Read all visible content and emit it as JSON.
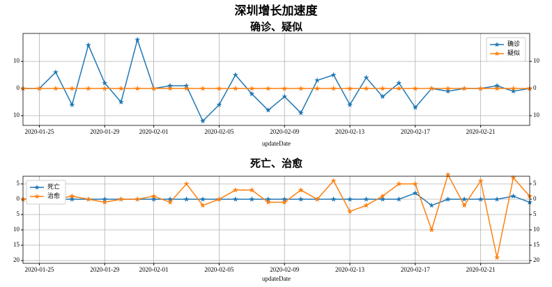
{
  "title": "深圳增长加速度",
  "chart_data": [
    {
      "type": "line",
      "title": "确诊、疑似",
      "xlabel": "updateDate",
      "x": [
        "2020-01-24",
        "2020-01-25",
        "2020-01-26",
        "2020-01-27",
        "2020-01-28",
        "2020-01-29",
        "2020-01-30",
        "2020-01-31",
        "2020-02-01",
        "2020-02-02",
        "2020-02-03",
        "2020-02-04",
        "2020-02-05",
        "2020-02-06",
        "2020-02-07",
        "2020-02-08",
        "2020-02-09",
        "2020-02-10",
        "2020-02-11",
        "2020-02-12",
        "2020-02-13",
        "2020-02-14",
        "2020-02-15",
        "2020-02-16",
        "2020-02-17",
        "2020-02-18",
        "2020-02-19",
        "2020-02-20",
        "2020-02-21",
        "2020-02-22",
        "2020-02-23",
        "2020-02-24"
      ],
      "xlim": [
        "2020-01-24",
        "2020-02-24"
      ],
      "xticks": [
        "2020-01-25",
        "2020-01-29",
        "2020-02-01",
        "2020-02-05",
        "2020-02-09",
        "2020-02-13",
        "2020-02-17",
        "2020-02-21"
      ],
      "ylim": [
        -13.6,
        20.3
      ],
      "yticks": [
        {
          "value": -10,
          "label": "10"
        },
        0,
        10
      ],
      "y2lim": [
        -13.6,
        20.3
      ],
      "y2ticks": [
        {
          "value": -10,
          "label": "10"
        },
        0,
        10
      ],
      "grid": true,
      "legend": "upper right",
      "series": [
        {
          "name": "确诊",
          "color": "#1f77b4",
          "values": [
            0,
            0,
            6,
            -6,
            16,
            2,
            -5,
            18,
            0,
            1,
            1,
            -12,
            -6,
            5,
            -2,
            -8,
            -3,
            -9,
            3,
            5,
            -6,
            4,
            -3,
            2,
            -7,
            0,
            -1,
            0,
            0,
            1,
            -1,
            0
          ]
        },
        {
          "name": "疑似",
          "color": "#ff7f0e",
          "axis": "y2",
          "values": [
            0,
            0,
            0,
            0,
            0,
            0,
            0,
            0,
            0,
            0,
            0,
            0,
            0,
            0,
            0,
            0,
            0,
            0,
            0,
            0,
            0,
            0,
            0,
            0,
            0,
            0,
            0,
            0,
            0,
            0,
            0,
            0
          ]
        }
      ]
    },
    {
      "type": "line",
      "title": "死亡、治愈",
      "xlabel": "updateDate",
      "x": [
        "2020-01-24",
        "2020-01-25",
        "2020-01-26",
        "2020-01-27",
        "2020-01-28",
        "2020-01-29",
        "2020-01-30",
        "2020-01-31",
        "2020-02-01",
        "2020-02-02",
        "2020-02-03",
        "2020-02-04",
        "2020-02-05",
        "2020-02-06",
        "2020-02-07",
        "2020-02-08",
        "2020-02-09",
        "2020-02-10",
        "2020-02-11",
        "2020-02-12",
        "2020-02-13",
        "2020-02-14",
        "2020-02-15",
        "2020-02-16",
        "2020-02-17",
        "2020-02-18",
        "2020-02-19",
        "2020-02-20",
        "2020-02-21",
        "2020-02-22",
        "2020-02-23",
        "2020-02-24"
      ],
      "xlim": [
        "2020-01-24",
        "2020-02-24"
      ],
      "xticks": [
        "2020-01-25",
        "2020-01-29",
        "2020-02-01",
        "2020-02-05",
        "2020-02-09",
        "2020-02-13",
        "2020-02-17",
        "2020-02-21"
      ],
      "ylim": [
        -20.9,
        7.5
      ],
      "yticks": [
        {
          "value": -20,
          "label": "20"
        },
        {
          "value": -15,
          "label": "15"
        },
        {
          "value": -10,
          "label": "10"
        },
        {
          "value": -5,
          "label": "5"
        },
        0,
        5
      ],
      "y2lim": [
        -20.9,
        7.5
      ],
      "y2ticks": [
        {
          "value": -20,
          "label": "20"
        },
        {
          "value": -15,
          "label": "15"
        },
        {
          "value": -10,
          "label": "10"
        },
        {
          "value": -5,
          "label": "5"
        },
        0,
        5
      ],
      "grid": true,
      "legend": "upper left",
      "series": [
        {
          "name": "死亡",
          "color": "#1f77b4",
          "values": [
            0,
            0,
            0,
            0,
            0,
            0,
            0,
            0,
            0,
            0,
            0,
            0,
            0,
            0,
            0,
            0,
            0,
            0,
            0,
            0,
            0,
            0,
            0,
            0,
            2,
            -2,
            0,
            0,
            0,
            0,
            1,
            -1
          ]
        },
        {
          "name": "治愈",
          "color": "#ff7f0e",
          "axis": "y2",
          "values": [
            0,
            0,
            0,
            1,
            0,
            -1,
            0,
            0,
            1,
            -1,
            5,
            -2,
            0,
            3,
            3,
            -1,
            -1,
            3,
            0,
            6,
            -4,
            -2,
            1,
            5,
            5,
            -10,
            8,
            -2,
            6,
            -19,
            7,
            1
          ]
        }
      ]
    }
  ]
}
